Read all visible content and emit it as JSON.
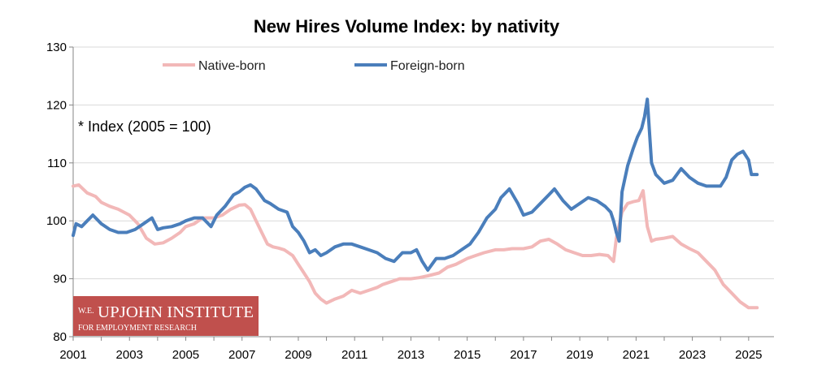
{
  "chart_data": {
    "type": "line",
    "title": "New Hires Volume Index: by nativity",
    "xlabel": "",
    "ylabel": "",
    "annotation": "* Index (2005 = 100)",
    "xlim": [
      2001,
      2025.9
    ],
    "ylim": [
      80,
      130
    ],
    "yticks": [
      80,
      90,
      100,
      110,
      120,
      130
    ],
    "xticks": [
      "2001",
      "2003",
      "2005",
      "2007",
      "2009",
      "2011",
      "2013",
      "2015",
      "2017",
      "2019",
      "2021",
      "2023",
      "2025"
    ],
    "grid": "horizontal",
    "legend_position": "top",
    "series": [
      {
        "name": "Native-born",
        "color": "#f2b8b8",
        "x": [
          2001.0,
          2001.2,
          2001.5,
          2001.8,
          2002.0,
          2002.3,
          2002.6,
          2003.0,
          2003.3,
          2003.6,
          2003.9,
          2004.2,
          2004.5,
          2004.8,
          2005.0,
          2005.3,
          2005.6,
          2006.0,
          2006.3,
          2006.6,
          2006.9,
          2007.1,
          2007.3,
          2007.5,
          2007.7,
          2007.9,
          2008.1,
          2008.3,
          2008.5,
          2008.8,
          2009.0,
          2009.2,
          2009.4,
          2009.6,
          2009.8,
          2010.0,
          2010.3,
          2010.6,
          2010.9,
          2011.2,
          2011.5,
          2011.8,
          2012.0,
          2012.3,
          2012.6,
          2013.0,
          2013.3,
          2013.6,
          2014.0,
          2014.3,
          2014.6,
          2015.0,
          2015.3,
          2015.6,
          2016.0,
          2016.3,
          2016.6,
          2017.0,
          2017.3,
          2017.6,
          2017.9,
          2018.2,
          2018.5,
          2018.8,
          2019.1,
          2019.4,
          2019.7,
          2020.0,
          2020.2,
          2020.3,
          2020.5,
          2020.7,
          2020.9,
          2021.1,
          2021.25,
          2021.4,
          2021.55,
          2021.7,
          2022.0,
          2022.3,
          2022.6,
          2022.9,
          2023.2,
          2023.5,
          2023.8,
          2024.1,
          2024.4,
          2024.7,
          2025.0,
          2025.3
        ],
        "values": [
          106.0,
          106.2,
          104.8,
          104.2,
          103.2,
          102.5,
          102.0,
          101.0,
          99.5,
          97.0,
          96.0,
          96.2,
          97.0,
          98.0,
          99.0,
          99.5,
          100.5,
          100.5,
          101.0,
          102.0,
          102.7,
          102.8,
          102.0,
          100.0,
          98.0,
          96.0,
          95.5,
          95.3,
          95.0,
          94.0,
          92.5,
          91.0,
          89.5,
          87.5,
          86.5,
          85.8,
          86.5,
          87.0,
          88.0,
          87.5,
          88.0,
          88.5,
          89.0,
          89.5,
          90.0,
          90.0,
          90.2,
          90.5,
          91.0,
          92.0,
          92.5,
          93.5,
          94.0,
          94.5,
          95.0,
          95.0,
          95.2,
          95.2,
          95.5,
          96.5,
          96.8,
          96.0,
          95.0,
          94.5,
          94.0,
          94.0,
          94.2,
          94.0,
          93.0,
          97.0,
          101.5,
          103.0,
          103.3,
          103.5,
          105.2,
          99.0,
          96.5,
          96.8,
          97.0,
          97.3,
          96.0,
          95.2,
          94.5,
          93.0,
          91.5,
          89.0,
          87.5,
          86.0,
          85.0,
          85.0
        ]
      },
      {
        "name": "Foreign-born",
        "color": "#4a7ebb",
        "x": [
          2001.0,
          2001.1,
          2001.3,
          2001.5,
          2001.7,
          2002.0,
          2002.3,
          2002.6,
          2002.9,
          2003.2,
          2003.5,
          2003.8,
          2004.0,
          2004.2,
          2004.5,
          2004.8,
          2005.0,
          2005.3,
          2005.6,
          2005.9,
          2006.1,
          2006.4,
          2006.7,
          2006.9,
          2007.1,
          2007.3,
          2007.5,
          2007.8,
          2008.0,
          2008.3,
          2008.6,
          2008.8,
          2009.0,
          2009.2,
          2009.4,
          2009.6,
          2009.8,
          2010.0,
          2010.3,
          2010.6,
          2010.9,
          2011.2,
          2011.5,
          2011.8,
          2012.1,
          2012.4,
          2012.7,
          2013.0,
          2013.2,
          2013.4,
          2013.6,
          2013.9,
          2014.2,
          2014.5,
          2014.8,
          2015.1,
          2015.4,
          2015.7,
          2016.0,
          2016.2,
          2016.5,
          2016.8,
          2017.0,
          2017.3,
          2017.6,
          2017.9,
          2018.1,
          2018.4,
          2018.7,
          2019.0,
          2019.3,
          2019.6,
          2019.9,
          2020.1,
          2020.2,
          2020.3,
          2020.4,
          2020.5,
          2020.7,
          2020.9,
          2021.05,
          2021.2,
          2021.3,
          2021.4,
          2021.55,
          2021.7,
          2022.0,
          2022.3,
          2022.6,
          2022.9,
          2023.2,
          2023.5,
          2023.8,
          2024.0,
          2024.2,
          2024.4,
          2024.6,
          2024.8,
          2025.0,
          2025.1,
          2025.2,
          2025.3
        ],
        "values": [
          97.5,
          99.5,
          99.0,
          100.0,
          101.0,
          99.5,
          98.5,
          98.0,
          98.0,
          98.5,
          99.5,
          100.5,
          98.5,
          98.8,
          99.0,
          99.5,
          100.0,
          100.5,
          100.5,
          99.0,
          101.0,
          102.5,
          104.5,
          105.0,
          105.8,
          106.2,
          105.5,
          103.5,
          103.0,
          102.0,
          101.5,
          99.0,
          98.0,
          96.5,
          94.5,
          95.0,
          94.0,
          94.5,
          95.5,
          96.0,
          96.0,
          95.5,
          95.0,
          94.5,
          93.5,
          93.0,
          94.5,
          94.5,
          95.0,
          93.0,
          91.5,
          93.5,
          93.5,
          94.0,
          95.0,
          96.0,
          98.0,
          100.5,
          102.0,
          104.0,
          105.5,
          103.0,
          101.0,
          101.5,
          103.0,
          104.5,
          105.5,
          103.5,
          102.0,
          103.0,
          104.0,
          103.5,
          102.5,
          101.5,
          100.0,
          98.0,
          96.5,
          105.0,
          109.5,
          112.5,
          114.5,
          116.0,
          118.0,
          121.0,
          110.0,
          108.0,
          106.5,
          107.0,
          109.0,
          107.5,
          106.5,
          106.0,
          106.0,
          106.0,
          107.5,
          110.5,
          111.5,
          112.0,
          110.5,
          108.0,
          108.0,
          108.0
        ]
      }
    ]
  },
  "logo": {
    "small_text": "W.E.",
    "name": "UPJOHN INSTITUTE",
    "tagline": "FOR EMPLOYMENT RESEARCH",
    "background": "#c0504d"
  }
}
